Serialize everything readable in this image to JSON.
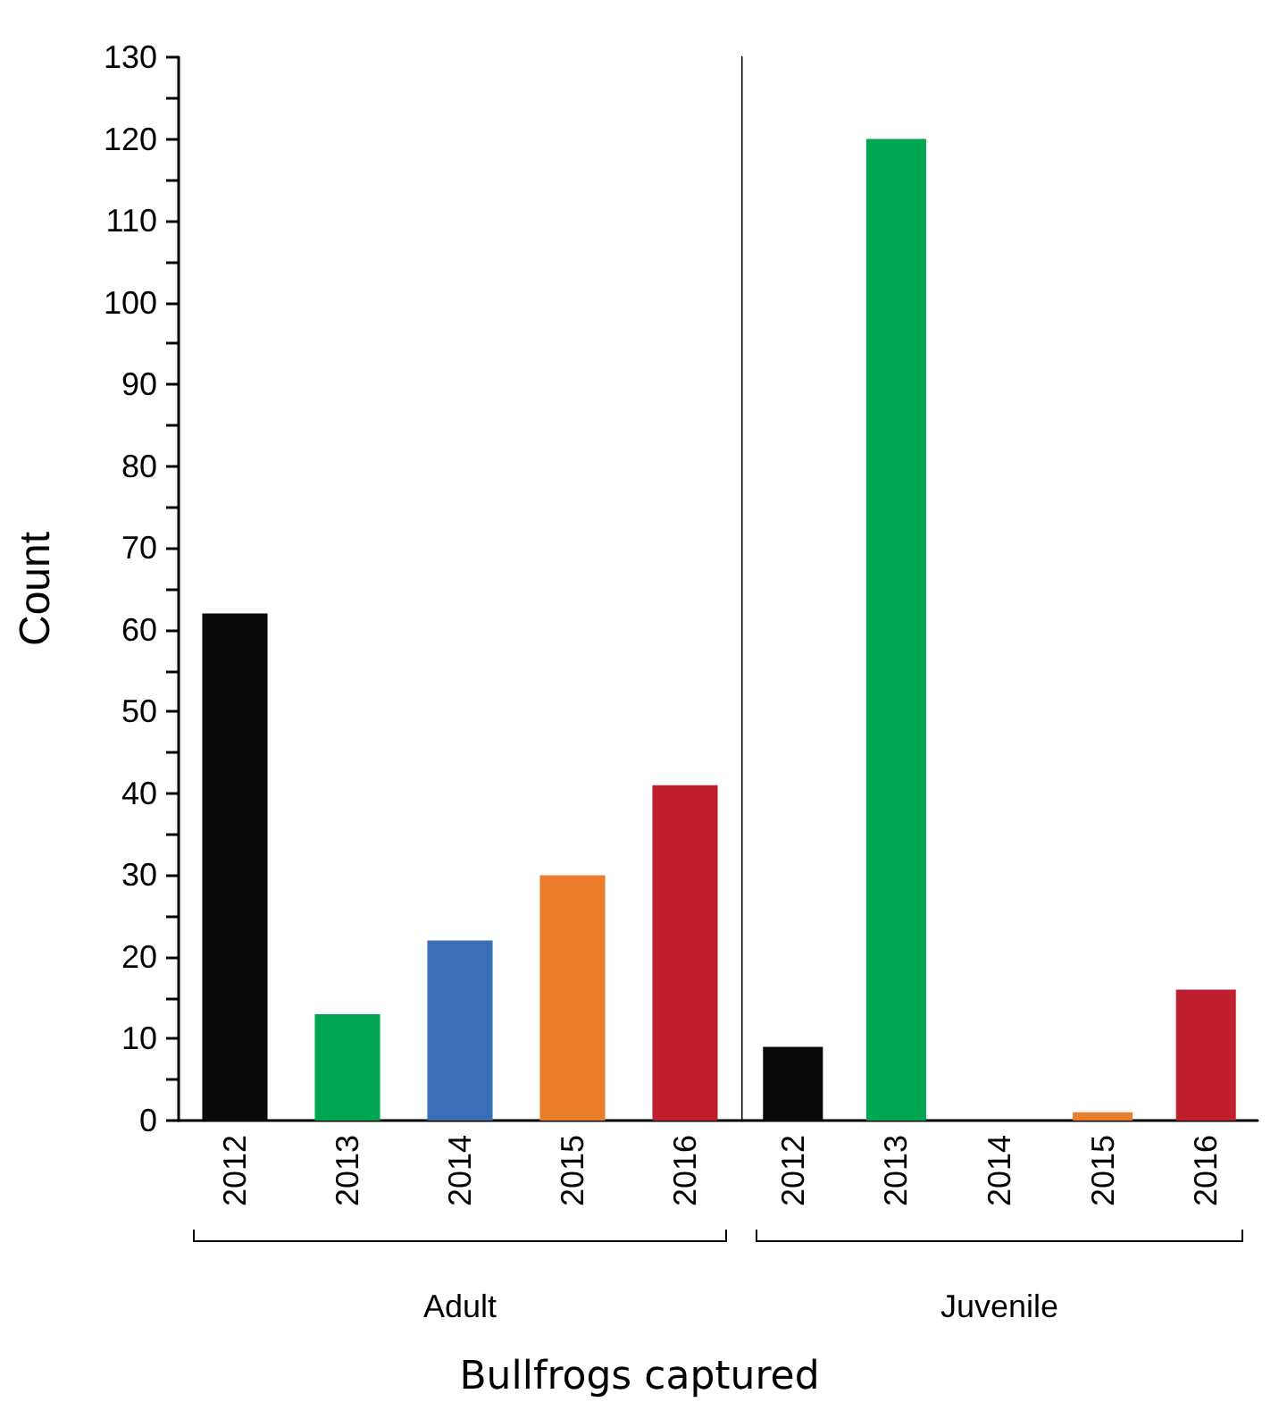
{
  "chart_data": [
    {
      "type": "bar",
      "ylabel": "Count",
      "xlabel": "Adult",
      "categories": [
        "2012",
        "2013",
        "2014",
        "2015",
        "2016"
      ],
      "values": [
        62,
        13,
        22,
        30,
        41
      ],
      "colors": [
        "#0a0a0a",
        "#00a651",
        "#3a6fb7",
        "#e97d2b",
        "#be1e2d"
      ],
      "ylim": [
        0,
        130
      ],
      "yticks": [
        0,
        {
          "value": 5,
          "label": null
        },
        10,
        {
          "value": 15,
          "label": null
        },
        20,
        {
          "value": 25,
          "label": null
        },
        30,
        {
          "value": 35,
          "label": null
        },
        40,
        {
          "value": 45,
          "label": null
        },
        50,
        {
          "value": 55,
          "label": null
        },
        60,
        {
          "value": 65,
          "label": null
        },
        70,
        {
          "value": 75,
          "label": null
        },
        80,
        {
          "value": 85,
          "label": null
        },
        90,
        {
          "value": 95,
          "label": null
        },
        100,
        {
          "value": 105,
          "label": null
        },
        110,
        {
          "value": 115,
          "label": null
        },
        120,
        {
          "value": 125,
          "label": null
        },
        130
      ],
      "annotations": [
        "Bullfrogs captured"
      ]
    },
    {
      "type": "bar",
      "xlabel": "Juvenile",
      "categories": [
        "2012",
        "2013",
        "2014",
        "2015",
        "2016"
      ],
      "values": [
        9,
        120,
        0,
        1,
        16
      ],
      "colors": [
        "#0a0a0a",
        "#00a651",
        "#3a6fb7",
        "#e97d2b",
        "#be1e2d"
      ],
      "ylim": [
        0,
        130
      ],
      "tick_labels": "x"
    }
  ]
}
